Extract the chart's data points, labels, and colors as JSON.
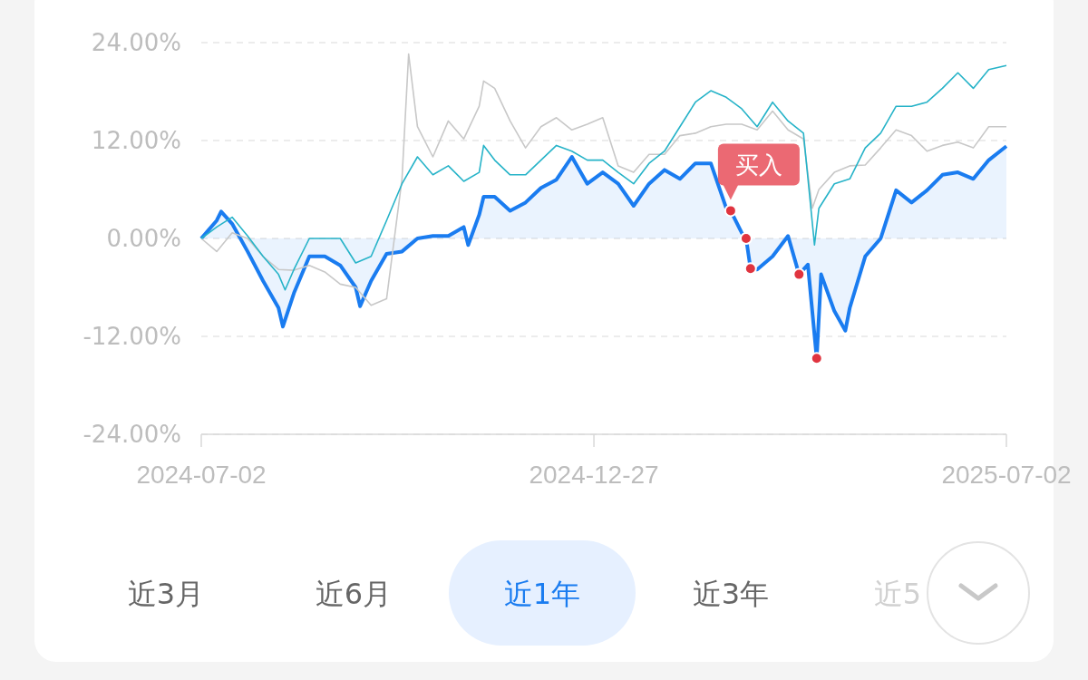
{
  "chart_data": {
    "type": "line",
    "xlim": [
      "2024-07-02",
      "2025-07-02"
    ],
    "xticks": [
      {
        "value": "2024-07-02",
        "label": "2024-07-02"
      },
      {
        "value": "2024-12-27",
        "label": "2024-12-27"
      },
      {
        "value": "2025-07-02",
        "label": "2025-07-02"
      }
    ],
    "ylim": [
      -24,
      24
    ],
    "yticks": [
      {
        "value": 24,
        "label": "24.00%"
      },
      {
        "value": 12,
        "label": "12.00%"
      },
      {
        "value": 0,
        "label": "0.00%"
      },
      {
        "value": -12,
        "label": "-12.00%"
      },
      {
        "value": -24,
        "label": "-24.00%"
      }
    ],
    "grid": "y",
    "legend": false,
    "marker": "none",
    "series": [
      {
        "color": "#c8c8c8",
        "x": [
          "2024-07-02",
          "2024-07-09",
          "2024-07-16",
          "2024-07-23",
          "2024-07-30",
          "2024-08-06",
          "2024-08-13",
          "2024-08-20",
          "2024-08-27",
          "2024-09-03",
          "2024-09-10",
          "2024-09-17",
          "2024-09-24",
          "2024-10-01",
          "2024-10-04",
          "2024-10-08",
          "2024-10-15",
          "2024-10-22",
          "2024-10-29",
          "2024-11-05",
          "2024-11-07",
          "2024-11-12",
          "2024-11-19",
          "2024-11-26",
          "2024-12-03",
          "2024-12-10",
          "2024-12-17",
          "2024-12-24",
          "2024-12-31",
          "2025-01-07",
          "2025-01-14",
          "2025-01-21",
          "2025-01-28",
          "2025-02-04",
          "2025-02-11",
          "2025-02-18",
          "2025-02-25",
          "2025-03-04",
          "2025-03-11",
          "2025-03-18",
          "2025-03-25",
          "2025-04-01",
          "2025-04-05",
          "2025-04-08",
          "2025-04-15",
          "2025-04-22",
          "2025-04-29",
          "2025-05-06",
          "2025-05-13",
          "2025-05-20",
          "2025-05-27",
          "2025-06-03",
          "2025-06-10",
          "2025-06-17",
          "2025-06-24",
          "2025-07-02"
        ],
        "values": [
          0,
          -1.6,
          0.7,
          0,
          -2.2,
          -3.8,
          -3.9,
          -3.3,
          -4.1,
          -5.6,
          -6,
          -8.2,
          -7.4,
          7.3,
          22.6,
          13.7,
          10,
          14.4,
          12.2,
          16.2,
          19.3,
          18.4,
          14.4,
          11.1,
          13.7,
          14.8,
          13.3,
          14,
          14.8,
          8.9,
          8.1,
          10.3,
          10.3,
          12.6,
          12.9,
          13.7,
          14,
          14,
          13.3,
          15.6,
          13.3,
          12.2,
          3.7,
          6,
          8.1,
          8.9,
          9,
          11.1,
          13.3,
          12.6,
          10.7,
          11.4,
          11.8,
          11.1,
          13.7,
          13.7
        ]
      },
      {
        "color": "#26b3c8",
        "x": [
          "2024-07-02",
          "2024-07-09",
          "2024-07-16",
          "2024-07-23",
          "2024-07-30",
          "2024-08-06",
          "2024-08-09",
          "2024-08-13",
          "2024-08-20",
          "2024-08-27",
          "2024-09-03",
          "2024-09-10",
          "2024-09-17",
          "2024-09-24",
          "2024-10-01",
          "2024-10-08",
          "2024-10-15",
          "2024-10-22",
          "2024-10-29",
          "2024-11-05",
          "2024-11-07",
          "2024-11-12",
          "2024-11-19",
          "2024-11-26",
          "2024-12-03",
          "2024-12-10",
          "2024-12-17",
          "2024-12-24",
          "2024-12-31",
          "2025-01-07",
          "2025-01-14",
          "2025-01-21",
          "2025-01-28",
          "2025-02-04",
          "2025-02-11",
          "2025-02-18",
          "2025-02-25",
          "2025-03-04",
          "2025-03-11",
          "2025-03-18",
          "2025-03-25",
          "2025-04-01",
          "2025-04-06",
          "2025-04-08",
          "2025-04-15",
          "2025-04-22",
          "2025-04-29",
          "2025-05-06",
          "2025-05-13",
          "2025-05-20",
          "2025-05-27",
          "2025-06-03",
          "2025-06-10",
          "2025-06-17",
          "2025-06-24",
          "2025-07-02"
        ],
        "values": [
          0,
          1.4,
          2.6,
          0.3,
          -2.2,
          -4.4,
          -6.3,
          -3.8,
          0,
          0,
          0,
          -3,
          -2.2,
          2.2,
          6.7,
          10,
          7.8,
          8.9,
          7,
          8.1,
          11.4,
          9.6,
          7.8,
          7.8,
          9.6,
          11.4,
          10.7,
          9.6,
          9.6,
          8.1,
          6.7,
          9.2,
          10.7,
          13.7,
          16.7,
          18.1,
          17.3,
          15.9,
          13.7,
          16.7,
          14.4,
          12.9,
          -0.8,
          3.7,
          6.7,
          7.3,
          11.1,
          12.9,
          16.2,
          16.2,
          16.7,
          18.4,
          20.3,
          18.4,
          20.7,
          21.2
        ]
      },
      {
        "type": "area",
        "color": "#1a7cf0",
        "x": [
          "2024-07-02",
          "2024-07-09",
          "2024-07-11",
          "2024-07-16",
          "2024-07-23",
          "2024-07-30",
          "2024-08-06",
          "2024-08-08",
          "2024-08-13",
          "2024-08-20",
          "2024-08-27",
          "2024-09-03",
          "2024-09-10",
          "2024-09-12",
          "2024-09-17",
          "2024-09-24",
          "2024-10-01",
          "2024-10-08",
          "2024-10-15",
          "2024-10-22",
          "2024-10-29",
          "2024-10-31",
          "2024-11-05",
          "2024-11-07",
          "2024-11-12",
          "2024-11-19",
          "2024-11-26",
          "2024-12-03",
          "2024-12-10",
          "2024-12-17",
          "2024-12-24",
          "2024-12-31",
          "2025-01-07",
          "2025-01-14",
          "2025-01-21",
          "2025-01-28",
          "2025-02-04",
          "2025-02-11",
          "2025-02-18",
          "2025-02-25",
          "2025-02-27",
          "2025-03-04",
          "2025-03-06",
          "2025-03-08",
          "2025-03-11",
          "2025-03-18",
          "2025-03-25",
          "2025-03-30",
          "2025-04-03",
          "2025-04-07",
          "2025-04-09",
          "2025-04-15",
          "2025-04-20",
          "2025-04-22",
          "2025-04-29",
          "2025-05-06",
          "2025-05-13",
          "2025-05-20",
          "2025-05-27",
          "2025-06-03",
          "2025-06-10",
          "2025-06-17",
          "2025-06-24",
          "2025-07-02"
        ],
        "values": [
          0,
          2.2,
          3.3,
          1.8,
          -1.6,
          -5.2,
          -8.5,
          -10.8,
          -6.7,
          -2.2,
          -2.2,
          -3.3,
          -6,
          -8.3,
          -5.2,
          -1.9,
          -1.6,
          0,
          0.3,
          0.3,
          1.4,
          -0.8,
          2.9,
          5.1,
          5.1,
          3.4,
          4.4,
          6.2,
          7.2,
          10,
          6.7,
          8.1,
          6.7,
          4,
          6.7,
          8.4,
          7.3,
          9.2,
          9.2,
          3.7,
          3.4,
          0.7,
          0,
          -3.7,
          -3.8,
          -2.2,
          0.3,
          -4.4,
          -3.2,
          -14.7,
          -4.4,
          -8.9,
          -11.3,
          -8.5,
          -2.2,
          0,
          5.9,
          4.4,
          5.9,
          7.8,
          8.1,
          7.3,
          9.6,
          11.3
        ]
      },
      {
        "type": "scatter",
        "color": "#e0343f",
        "marker": "circle",
        "x": [
          "2025-02-27",
          "2025-03-06",
          "2025-03-08",
          "2025-03-30",
          "2025-04-07"
        ],
        "values": [
          3.4,
          0,
          -3.7,
          -4.4,
          -14.7
        ]
      }
    ],
    "annotations": [
      {
        "text": "买入",
        "x": "2025-02-27",
        "y": 3.4
      },
      "近3月",
      "近6月",
      "近1年",
      "近3年",
      "近5"
    ]
  }
}
